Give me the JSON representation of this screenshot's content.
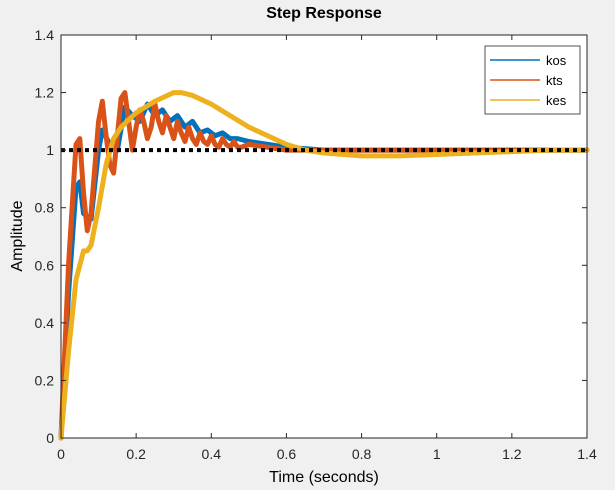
{
  "chart_data": {
    "type": "line",
    "title": "Step Response",
    "xlabel": "Time (seconds)",
    "ylabel": "Amplitude",
    "xlim": [
      0,
      1.4
    ],
    "ylim": [
      0,
      1.4
    ],
    "xticks": [
      0,
      0.2,
      0.4,
      0.6,
      0.8,
      1,
      1.2,
      1.4
    ],
    "yticks": [
      0,
      0.2,
      0.4,
      0.6,
      0.8,
      1,
      1.2,
      1.4
    ],
    "xtick_labels": [
      "0",
      "0.2",
      "0.4",
      "0.6",
      "0.8",
      "1",
      "1.2",
      "1.4"
    ],
    "ytick_labels": [
      "0",
      "0.2",
      "0.4",
      "0.6",
      "0.8",
      "1",
      "1.2",
      "1.4"
    ],
    "grid": false,
    "legend_position": "top-right",
    "reference_line": {
      "y": 1,
      "style": "dotted",
      "color": "#000000"
    },
    "series": [
      {
        "name": "kos",
        "color": "#0072BD",
        "x": [
          0,
          0.02,
          0.04,
          0.05,
          0.06,
          0.08,
          0.1,
          0.11,
          0.13,
          0.15,
          0.17,
          0.19,
          0.21,
          0.23,
          0.25,
          0.27,
          0.29,
          0.31,
          0.33,
          0.35,
          0.37,
          0.39,
          0.41,
          0.43,
          0.45,
          0.47,
          0.5,
          0.55,
          0.6,
          0.7,
          0.8,
          1.0,
          1.2,
          1.4
        ],
        "y": [
          0,
          0.5,
          0.87,
          0.89,
          0.78,
          0.76,
          1.0,
          1.07,
          1.02,
          1.0,
          1.15,
          1.12,
          1.1,
          1.16,
          1.12,
          1.14,
          1.1,
          1.12,
          1.08,
          1.1,
          1.06,
          1.07,
          1.05,
          1.06,
          1.04,
          1.04,
          1.03,
          1.02,
          1.01,
          1.0,
          1.0,
          1.0,
          1.0,
          1.0
        ]
      },
      {
        "name": "kts",
        "color": "#D95319",
        "x": [
          0,
          0.02,
          0.04,
          0.05,
          0.06,
          0.07,
          0.08,
          0.1,
          0.11,
          0.12,
          0.13,
          0.14,
          0.15,
          0.16,
          0.17,
          0.18,
          0.19,
          0.2,
          0.21,
          0.22,
          0.23,
          0.24,
          0.25,
          0.26,
          0.27,
          0.28,
          0.29,
          0.3,
          0.31,
          0.32,
          0.33,
          0.34,
          0.35,
          0.36,
          0.37,
          0.38,
          0.39,
          0.4,
          0.41,
          0.42,
          0.43,
          0.44,
          0.45,
          0.46,
          0.47,
          0.48,
          0.5,
          0.55,
          0.6,
          0.7,
          0.8,
          1.0,
          1.2,
          1.4
        ],
        "y": [
          0,
          0.6,
          1.02,
          1.04,
          0.85,
          0.72,
          0.78,
          1.1,
          1.17,
          1.05,
          0.95,
          0.92,
          1.05,
          1.18,
          1.2,
          1.1,
          1.0,
          1.08,
          1.14,
          1.1,
          1.04,
          1.08,
          1.16,
          1.1,
          1.06,
          1.12,
          1.08,
          1.04,
          1.1,
          1.06,
          1.03,
          1.08,
          1.04,
          1.02,
          1.06,
          1.03,
          1.02,
          1.05,
          1.02,
          1.01,
          1.04,
          1.02,
          1.01,
          1.03,
          1.01,
          1.01,
          1.02,
          1.01,
          1.0,
          1.0,
          1.0,
          1.0,
          1.0,
          1.0
        ]
      },
      {
        "name": "kes",
        "color": "#EDB120",
        "x": [
          0,
          0.02,
          0.04,
          0.06,
          0.07,
          0.08,
          0.1,
          0.12,
          0.14,
          0.16,
          0.2,
          0.25,
          0.3,
          0.32,
          0.35,
          0.4,
          0.45,
          0.5,
          0.55,
          0.6,
          0.65,
          0.7,
          0.8,
          0.9,
          1.0,
          1.1,
          1.2,
          1.3,
          1.4
        ],
        "y": [
          0,
          0.3,
          0.55,
          0.65,
          0.65,
          0.67,
          0.8,
          0.95,
          1.04,
          1.08,
          1.13,
          1.17,
          1.2,
          1.2,
          1.19,
          1.16,
          1.12,
          1.08,
          1.05,
          1.02,
          1.0,
          0.99,
          0.98,
          0.98,
          0.985,
          0.99,
          0.995,
          1.0,
          1.0
        ]
      }
    ]
  }
}
